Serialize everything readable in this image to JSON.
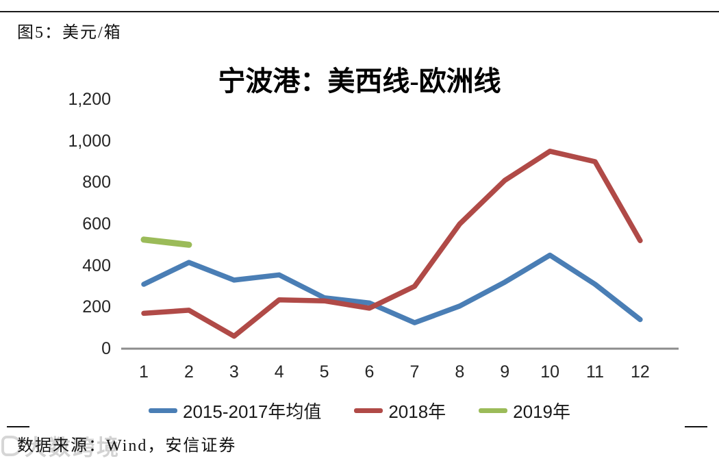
{
  "page": {
    "figure_label": "图5：美元/箱",
    "source_text": "数据来源：Wind，安信证券",
    "watermark": "大数跨境"
  },
  "chart_data": {
    "type": "line",
    "title": "宁波港：美西线-欧洲线",
    "xlabel": "",
    "ylabel": "",
    "categories": [
      "1",
      "2",
      "3",
      "4",
      "5",
      "6",
      "7",
      "8",
      "9",
      "10",
      "11",
      "12"
    ],
    "series": [
      {
        "name": "2015-2017年均值",
        "color": "#4A7EB5",
        "values": [
          310,
          415,
          330,
          355,
          245,
          220,
          125,
          205,
          320,
          450,
          310,
          140
        ]
      },
      {
        "name": "2018年",
        "color": "#B04A47",
        "values": [
          170,
          185,
          60,
          235,
          230,
          195,
          300,
          600,
          810,
          950,
          900,
          520
        ]
      },
      {
        "name": "2019年",
        "color": "#9BBB59",
        "values": [
          525,
          500,
          null,
          null,
          null,
          null,
          null,
          null,
          null,
          null,
          null,
          null
        ]
      }
    ],
    "ylim": [
      0,
      1200
    ],
    "yticks": [
      0,
      200,
      400,
      600,
      800,
      1000,
      1200
    ],
    "ytick_labels": [
      "0",
      "200",
      "400",
      "600",
      "800",
      "1,000",
      "1,200"
    ],
    "grid": false,
    "legend_position": "bottom",
    "axis_color": "#8C8C8C"
  }
}
